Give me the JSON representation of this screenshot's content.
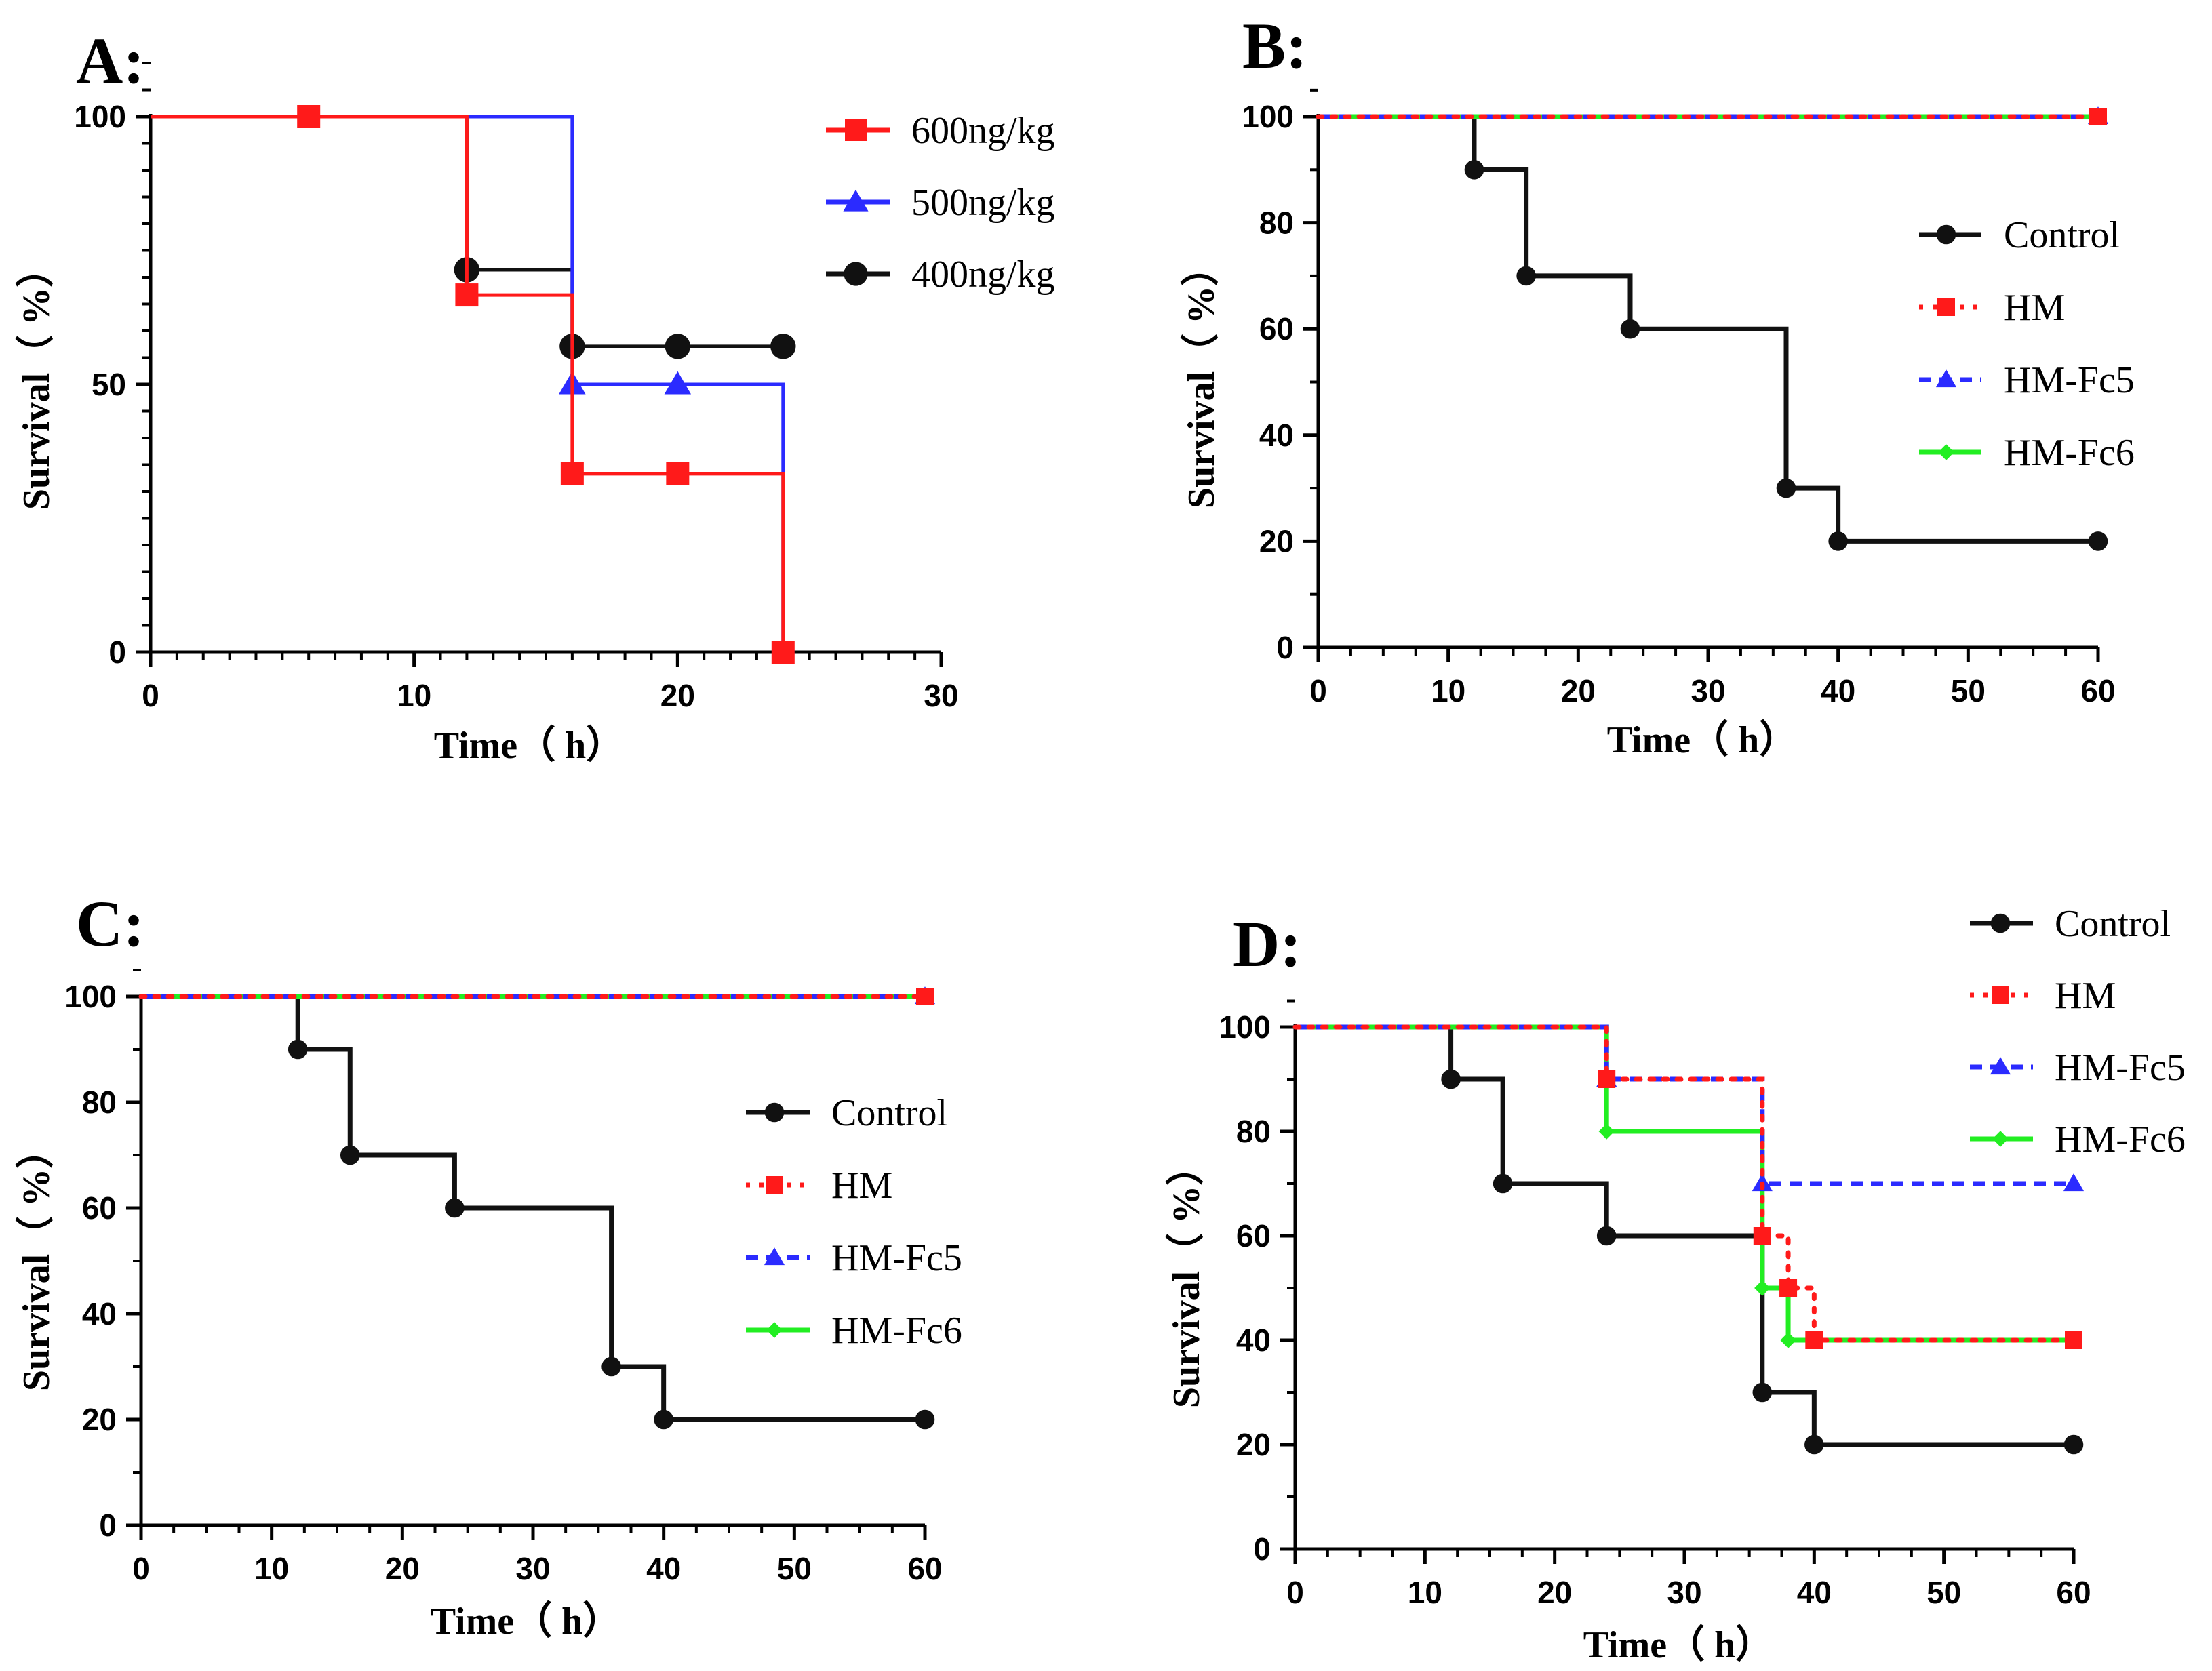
{
  "colors": {
    "red": "#ff1a1a",
    "blue": "#2b2bff",
    "black": "#111111",
    "green": "#22ee22",
    "gray": "#404040"
  },
  "chart_data": [
    {
      "panel": "A:",
      "type": "line",
      "step": true,
      "xlabel": "Time（  h）",
      "ylabel": "Survival（  %）",
      "xlim": [
        0,
        30
      ],
      "ylim": [
        0,
        100
      ],
      "xticks": [
        0,
        10,
        20,
        30
      ],
      "yticks": [
        0,
        50,
        100
      ],
      "legend_position": "top-right",
      "series": [
        {
          "name": "400ng/kg",
          "color": "#111111",
          "marker": "circle",
          "style": "solid",
          "x": [
            0,
            12,
            16,
            20,
            24
          ],
          "y": [
            100,
            71.4,
            57.1,
            57.1,
            57.1
          ],
          "markers_at": [
            12,
            16,
            20,
            24
          ]
        },
        {
          "name": "500ng/kg",
          "color": "#2b2bff",
          "marker": "triangle",
          "style": "solid",
          "x": [
            0,
            16,
            20,
            24,
            24
          ],
          "y": [
            100,
            50,
            50,
            50,
            0
          ],
          "markers_at": [
            16,
            20
          ]
        },
        {
          "name": "600ng/kg",
          "color": "#ff1a1a",
          "marker": "square",
          "style": "solid",
          "x": [
            0,
            6,
            12,
            16,
            20,
            24
          ],
          "y": [
            100,
            100,
            66.7,
            33.3,
            33.3,
            0
          ],
          "markers_at": [
            6,
            12,
            16,
            20,
            24
          ]
        }
      ],
      "legend": [
        "600ng/kg",
        "500ng/kg",
        "400ng/kg"
      ]
    },
    {
      "panel": "B:",
      "type": "line",
      "step": true,
      "xlabel": "Time（  h）",
      "ylabel": "Survival（  %）",
      "xlim": [
        0,
        60
      ],
      "ylim": [
        0,
        100
      ],
      "xticks": [
        0,
        10,
        20,
        30,
        40,
        50,
        60
      ],
      "yticks": [
        0,
        20,
        40,
        60,
        80,
        100
      ],
      "legend_position": "right",
      "series": [
        {
          "name": "Control",
          "color": "#111111",
          "marker": "circle",
          "style": "solid",
          "x": [
            0,
            12,
            16,
            24,
            36,
            40,
            60
          ],
          "y": [
            100,
            90,
            70,
            60,
            30,
            20,
            20
          ],
          "markers_at": [
            12,
            16,
            24,
            36,
            40,
            60
          ]
        },
        {
          "name": "HM-Fc6",
          "color": "#22ee22",
          "marker": "diamond",
          "style": "solid",
          "x": [
            0,
            60
          ],
          "y": [
            100,
            100
          ],
          "markers_at": [
            60
          ]
        },
        {
          "name": "HM-Fc5",
          "color": "#2b2bff",
          "marker": "triangle",
          "style": "dashed",
          "x": [
            0,
            60
          ],
          "y": [
            100,
            100
          ],
          "markers_at": [
            60
          ]
        },
        {
          "name": "HM",
          "color": "#ff1a1a",
          "marker": "square",
          "style": "dotted",
          "x": [
            0,
            60
          ],
          "y": [
            100,
            100
          ],
          "markers_at": [
            60
          ]
        }
      ],
      "legend": [
        "Control",
        "HM",
        "HM-Fc5",
        "HM-Fc6"
      ]
    },
    {
      "panel": "C:",
      "type": "line",
      "step": true,
      "xlabel": "Time（  h）",
      "ylabel": "Survival（  %）",
      "xlim": [
        0,
        60
      ],
      "ylim": [
        0,
        100
      ],
      "xticks": [
        0,
        10,
        20,
        30,
        40,
        50,
        60
      ],
      "yticks": [
        0,
        20,
        40,
        60,
        80,
        100
      ],
      "legend_position": "right",
      "series": [
        {
          "name": "Control",
          "color": "#111111",
          "marker": "circle",
          "style": "solid",
          "x": [
            0,
            12,
            16,
            24,
            36,
            40,
            60
          ],
          "y": [
            100,
            90,
            70,
            60,
            30,
            20,
            20
          ],
          "markers_at": [
            12,
            16,
            24,
            36,
            40,
            60
          ]
        },
        {
          "name": "HM-Fc6",
          "color": "#22ee22",
          "marker": "diamond",
          "style": "solid",
          "x": [
            0,
            60
          ],
          "y": [
            100,
            100
          ],
          "markers_at": [
            60
          ]
        },
        {
          "name": "HM-Fc5",
          "color": "#2b2bff",
          "marker": "triangle",
          "style": "dashed",
          "x": [
            0,
            60
          ],
          "y": [
            100,
            100
          ],
          "markers_at": [
            60
          ]
        },
        {
          "name": "HM",
          "color": "#ff1a1a",
          "marker": "square",
          "style": "dotted",
          "x": [
            0,
            60
          ],
          "y": [
            100,
            100
          ],
          "markers_at": [
            60
          ]
        }
      ],
      "legend": [
        "Control",
        "HM",
        "HM-Fc5",
        "HM-Fc6"
      ]
    },
    {
      "panel": "D:",
      "type": "line",
      "step": true,
      "xlabel": "Time（  h）",
      "ylabel": "Survival（  %）",
      "xlim": [
        0,
        60
      ],
      "ylim": [
        0,
        100
      ],
      "xticks": [
        0,
        10,
        20,
        30,
        40,
        50,
        60
      ],
      "yticks": [
        0,
        20,
        40,
        60,
        80,
        100
      ],
      "legend_position": "top-right",
      "series": [
        {
          "name": "Control",
          "color": "#111111",
          "marker": "circle",
          "style": "solid",
          "x": [
            0,
            12,
            16,
            24,
            36,
            40,
            60
          ],
          "y": [
            100,
            90,
            70,
            60,
            30,
            20,
            20
          ],
          "markers_at": [
            12,
            16,
            24,
            36,
            40,
            60
          ]
        },
        {
          "name": "HM-Fc6",
          "color": "#22ee22",
          "marker": "diamond",
          "style": "solid",
          "x": [
            0,
            24,
            36,
            38,
            60
          ],
          "y": [
            100,
            80,
            50,
            40,
            40
          ],
          "markers_at": [
            24,
            36,
            38,
            60
          ]
        },
        {
          "name": "HM-Fc5",
          "color": "#2b2bff",
          "marker": "triangle",
          "style": "dashed",
          "x": [
            0,
            24,
            36,
            60
          ],
          "y": [
            100,
            90,
            70,
            70
          ],
          "markers_at": [
            24,
            36,
            60
          ]
        },
        {
          "name": "HM",
          "color": "#ff1a1a",
          "marker": "square",
          "style": "dotted",
          "x": [
            0,
            24,
            36,
            38,
            40,
            60
          ],
          "y": [
            100,
            90,
            60,
            50,
            40,
            40
          ],
          "markers_at": [
            24,
            36,
            38,
            40,
            60
          ]
        }
      ],
      "legend": [
        "Control",
        "HM",
        "HM-Fc5",
        "HM-Fc6"
      ]
    }
  ]
}
